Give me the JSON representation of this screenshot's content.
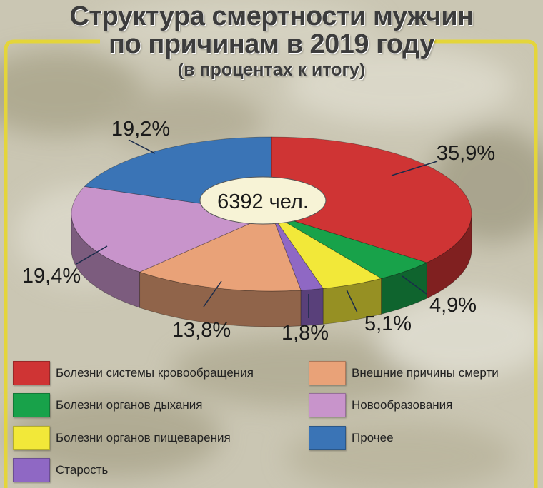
{
  "title_line1": "Структура смертности мужчин",
  "title_line2": "по причинам в 2019 году",
  "subtitle": "(в процентах к итогу)",
  "total_label": "6392 чел.",
  "colors": {
    "frame": "#e4d53a",
    "background": "#ccc8b5"
  },
  "chart_data": {
    "type": "pie",
    "style": "3d",
    "total": 6392,
    "slices": [
      {
        "name": "Болезни системы кровообращения",
        "value": 35.9,
        "label": "35,9%",
        "color": "#cf3434"
      },
      {
        "name": "Болезни органов дыхания",
        "value": 4.9,
        "label": "4,9%",
        "color": "#18a24a"
      },
      {
        "name": "Болезни органов пищеварения",
        "value": 5.1,
        "label": "5,1%",
        "color": "#f2e839"
      },
      {
        "name": "Старость",
        "value": 1.8,
        "label": "1,8%",
        "color": "#8f68c4"
      },
      {
        "name": "Внешние причины смерти",
        "value": 13.8,
        "label": "13,8%",
        "color": "#e9a278"
      },
      {
        "name": "Новообразования",
        "value": 19.4,
        "label": "19,4%",
        "color": "#c894cb"
      },
      {
        "name": "Прочее",
        "value": 19.2,
        "label": "19,2%",
        "color": "#3a74b6"
      }
    ],
    "legend": [
      {
        "name": "Болезни системы кровообращения",
        "color": "#cf3434"
      },
      {
        "name": "Внешние причины смерти",
        "color": "#e9a278"
      },
      {
        "name": "Болезни органов дыхания",
        "color": "#18a24a"
      },
      {
        "name": "Новообразования",
        "color": "#c894cb"
      },
      {
        "name": "Болезни органов пищеварения",
        "color": "#f2e839"
      },
      {
        "name": "Прочее",
        "color": "#3a74b6"
      },
      {
        "name": "Старость",
        "color": "#8f68c4"
      }
    ],
    "legend_placement": "bottom"
  }
}
